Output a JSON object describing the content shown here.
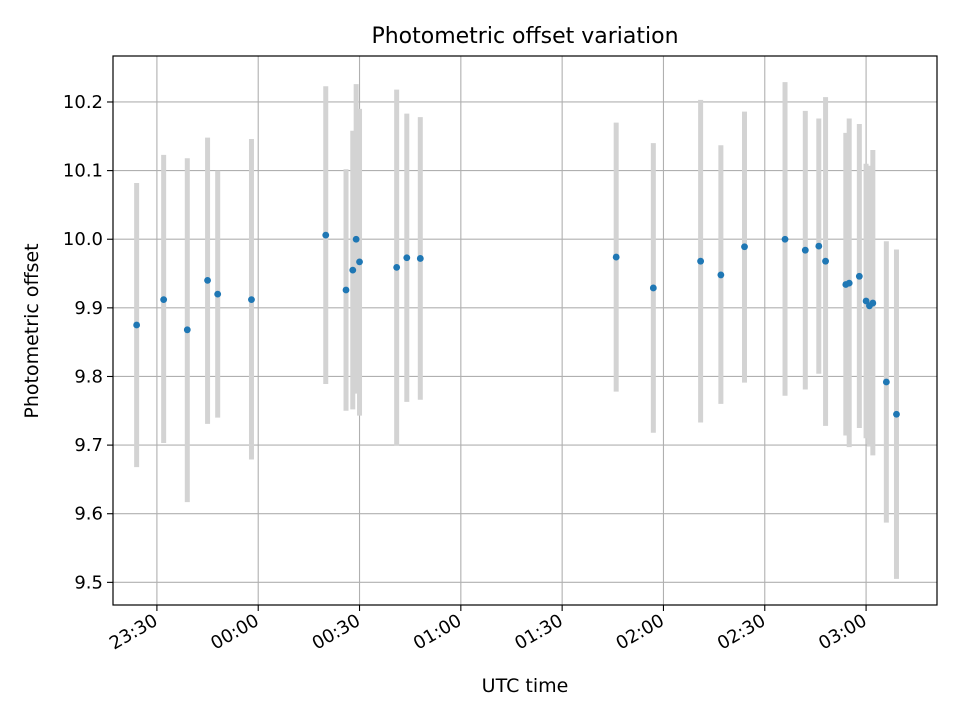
{
  "chart_data": {
    "type": "scatter",
    "title": "Photometric offset variation",
    "xlabel": "UTC time",
    "ylabel": "Photometric offset",
    "x_unit": "time (UTC, HH:MM; times after 24:00 are the next day)",
    "xlim": [
      "23:17",
      "03:21"
    ],
    "ylim": [
      9.467,
      10.267
    ],
    "grid": true,
    "x_ticks": [
      "23:30",
      "00:00",
      "00:30",
      "01:00",
      "01:30",
      "02:00",
      "02:30",
      "03:00"
    ],
    "y_ticks": [
      9.5,
      9.6,
      9.7,
      9.8,
      9.9,
      10.0,
      10.1,
      10.2
    ],
    "series": [
      {
        "marker_color": "#1f77b4",
        "errorbar_color": "#d3d3d3",
        "points": [
          {
            "t": "23:24",
            "y": 9.875,
            "lo": 9.668,
            "hi": 10.082
          },
          {
            "t": "23:32",
            "y": 9.912,
            "lo": 9.703,
            "hi": 10.123
          },
          {
            "t": "23:39",
            "y": 9.868,
            "lo": 9.617,
            "hi": 10.118
          },
          {
            "t": "23:45",
            "y": 9.94,
            "lo": 9.731,
            "hi": 10.148
          },
          {
            "t": "23:48",
            "y": 9.92,
            "lo": 9.74,
            "hi": 10.1
          },
          {
            "t": "23:58",
            "y": 9.912,
            "lo": 9.679,
            "hi": 10.146
          },
          {
            "t": "00:20",
            "y": 10.006,
            "lo": 9.789,
            "hi": 10.223
          },
          {
            "t": "00:26",
            "y": 9.926,
            "lo": 9.75,
            "hi": 10.102
          },
          {
            "t": "00:28",
            "y": 9.955,
            "lo": 9.752,
            "hi": 10.158
          },
          {
            "t": "00:29",
            "y": 10.0,
            "lo": 9.775,
            "hi": 10.226
          },
          {
            "t": "00:30",
            "y": 9.967,
            "lo": 9.743,
            "hi": 10.19
          },
          {
            "t": "00:41",
            "y": 9.959,
            "lo": 9.699,
            "hi": 10.218
          },
          {
            "t": "00:44",
            "y": 9.973,
            "lo": 9.763,
            "hi": 10.183
          },
          {
            "t": "00:48",
            "y": 9.972,
            "lo": 9.766,
            "hi": 10.178
          },
          {
            "t": "01:46",
            "y": 9.974,
            "lo": 9.778,
            "hi": 10.17
          },
          {
            "t": "01:57",
            "y": 9.929,
            "lo": 9.718,
            "hi": 10.14
          },
          {
            "t": "02:11",
            "y": 9.968,
            "lo": 9.733,
            "hi": 10.203
          },
          {
            "t": "02:17",
            "y": 9.948,
            "lo": 9.76,
            "hi": 10.137
          },
          {
            "t": "02:24",
            "y": 9.989,
            "lo": 9.791,
            "hi": 10.186
          },
          {
            "t": "02:36",
            "y": 10.0,
            "lo": 9.772,
            "hi": 10.229
          },
          {
            "t": "02:42",
            "y": 9.984,
            "lo": 9.781,
            "hi": 10.187
          },
          {
            "t": "02:46",
            "y": 9.99,
            "lo": 9.804,
            "hi": 10.176
          },
          {
            "t": "02:48",
            "y": 9.968,
            "lo": 9.728,
            "hi": 10.207
          },
          {
            "t": "02:54",
            "y": 9.934,
            "lo": 9.714,
            "hi": 10.155
          },
          {
            "t": "02:55",
            "y": 9.936,
            "lo": 9.697,
            "hi": 10.176
          },
          {
            "t": "02:58",
            "y": 9.946,
            "lo": 9.725,
            "hi": 10.168
          },
          {
            "t": "03:00",
            "y": 9.91,
            "lo": 9.71,
            "hi": 10.11
          },
          {
            "t": "03:01",
            "y": 9.903,
            "lo": 9.698,
            "hi": 10.107
          },
          {
            "t": "03:02",
            "y": 9.907,
            "lo": 9.685,
            "hi": 10.13
          },
          {
            "t": "03:06",
            "y": 9.792,
            "lo": 9.587,
            "hi": 9.997
          },
          {
            "t": "03:09",
            "y": 9.745,
            "lo": 9.505,
            "hi": 9.985
          }
        ]
      }
    ]
  }
}
